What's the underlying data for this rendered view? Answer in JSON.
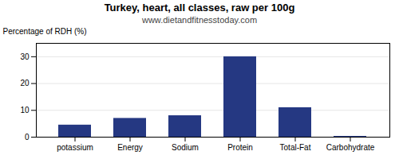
{
  "chart_data": {
    "type": "bar",
    "title": "Turkey, heart, all classes, raw per 100g",
    "subtitle": "www.dietandfitnesstoday.com",
    "ylabel": "Percentage of RDH (%)",
    "categories": [
      "potassium",
      "Energy",
      "Sodium",
      "Protein",
      "Total-Fat",
      "Carbohydrate"
    ],
    "values": [
      4.5,
      7.0,
      8.0,
      30.0,
      11.0,
      0.3
    ],
    "color": "#253882",
    "ylim": [
      0,
      35
    ],
    "yticks": [
      0,
      10,
      20,
      30
    ],
    "grid": true
  }
}
